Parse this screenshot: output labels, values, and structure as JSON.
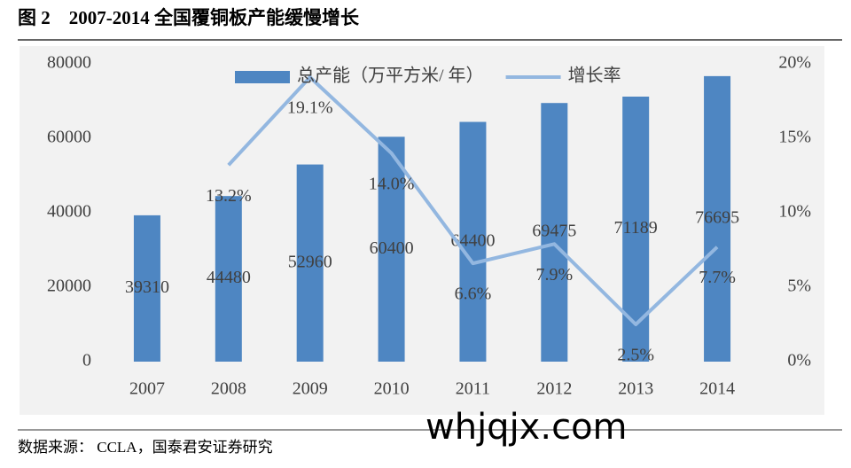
{
  "chart_data": {
    "type": "bar-line",
    "title": "图 2　2007-2014 全国覆铜板产能缓慢增长",
    "source": "数据来源： CCLA，国泰君安证券研究",
    "watermark": "whjqjx.com",
    "categories": [
      "2007",
      "2008",
      "2009",
      "2010",
      "2011",
      "2012",
      "2013",
      "2014"
    ],
    "series": [
      {
        "name": "总产能（万平方米/ 年）",
        "type": "bar",
        "color": "#4e86c2",
        "values": [
          39310,
          44480,
          52960,
          60400,
          64400,
          69475,
          71189,
          76695
        ]
      },
      {
        "name": "增长率",
        "type": "line",
        "axis": "y2",
        "color": "#93b7e0",
        "values": [
          null,
          13.2,
          19.1,
          14.0,
          6.6,
          7.9,
          2.5,
          7.7
        ],
        "value_labels": [
          null,
          "13.2%",
          "19.1%",
          "14.0%",
          "6.6%",
          "7.9%",
          "2.5%",
          "7.7%"
        ]
      }
    ],
    "ylim": [
      0,
      80000
    ],
    "yticks": [
      0,
      20000,
      40000,
      60000,
      80000
    ],
    "y2lim": [
      0,
      20
    ],
    "y2ticks": [
      {
        "value": 0,
        "label": "0%"
      },
      {
        "value": 5,
        "label": "5%"
      },
      {
        "value": 10,
        "label": "10%"
      },
      {
        "value": 15,
        "label": "15%"
      },
      {
        "value": 20,
        "label": "20%"
      }
    ],
    "grid": false
  }
}
